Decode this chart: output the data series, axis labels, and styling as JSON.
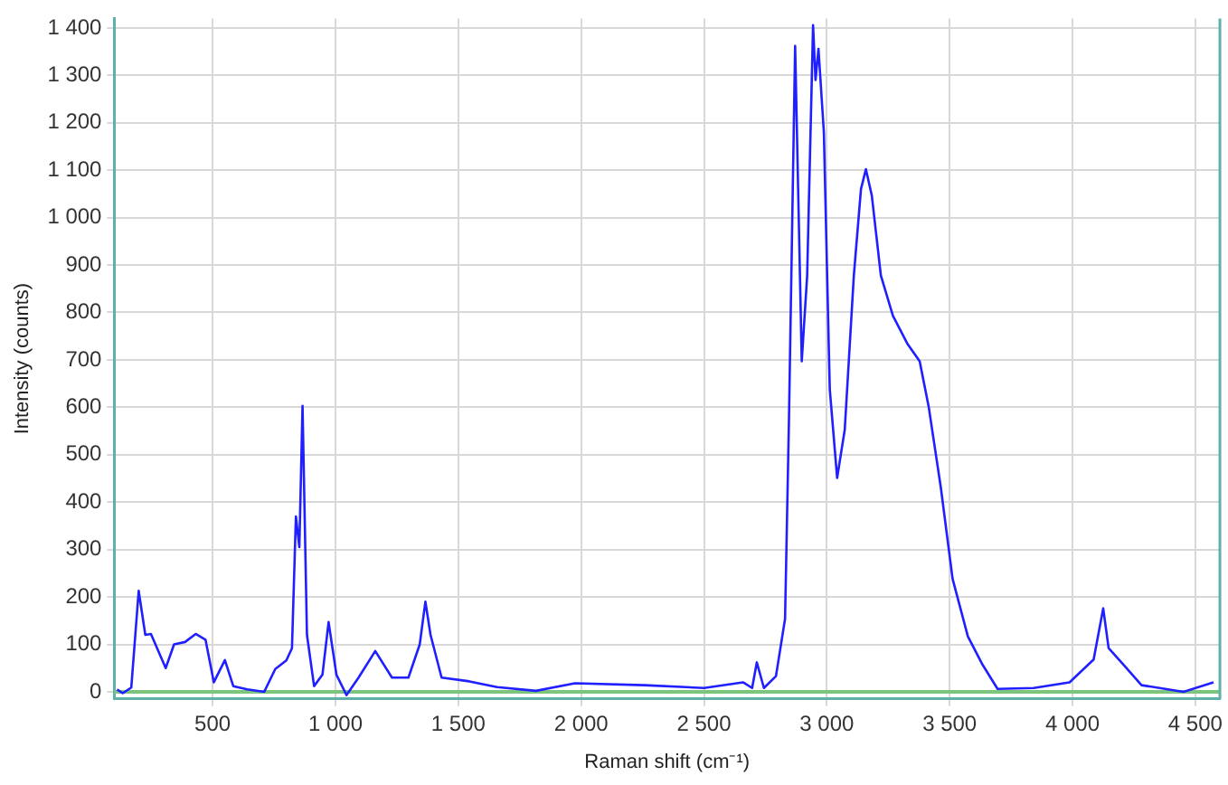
{
  "chart_data": {
    "type": "line",
    "xlabel": "Raman shift (cm⁻¹)",
    "ylabel": "Intensity (counts)",
    "xlim": [
      100,
      4600
    ],
    "ylim": [
      -15,
      1420
    ],
    "xticks": [
      500,
      {
        "value": 1000,
        "label": "1 000"
      },
      {
        "value": 1500,
        "label": "1 500"
      },
      {
        "value": 2000,
        "label": "2 000"
      },
      {
        "value": 2500,
        "label": "2 500"
      },
      {
        "value": 3000,
        "label": "3 000"
      },
      {
        "value": 3500,
        "label": "3 500"
      },
      {
        "value": 4000,
        "label": "4 000"
      },
      {
        "value": 4500,
        "label": "4 500"
      }
    ],
    "yticks": [
      0,
      100,
      200,
      300,
      400,
      500,
      600,
      700,
      800,
      900,
      {
        "value": 1000,
        "label": "1 000"
      },
      {
        "value": 1100,
        "label": "1 100"
      },
      {
        "value": 1200,
        "label": "1 200"
      },
      {
        "value": 1300,
        "label": "1 300"
      },
      {
        "value": 1400,
        "label": "1 400"
      }
    ],
    "grid": true,
    "ref_lines": [
      {
        "axis": "y",
        "value": 0,
        "color": "#7dc47d"
      }
    ],
    "series": [
      {
        "color": "#1f1fff",
        "x": [
          111,
          134,
          169,
          199,
          226,
          249,
          309,
          343,
          388,
          431,
          471,
          505,
          550,
          584,
          641,
          710,
          755,
          800,
          823,
          839,
          853,
          866,
          884,
          913,
          947,
          972,
          1004,
          1045,
          1094,
          1162,
          1230,
          1297,
          1343,
          1366,
          1387,
          1432,
          1545,
          1658,
          1816,
          1975,
          2257,
          2500,
          2659,
          2696,
          2715,
          2744,
          2793,
          2830,
          2846,
          2871,
          2898,
          2920,
          2944,
          2954,
          2966,
          2988,
          3012,
          3042,
          3073,
          3110,
          3139,
          3159,
          3183,
          3220,
          3269,
          3329,
          3378,
          3415,
          3464,
          3512,
          3574,
          3634,
          3695,
          3842,
          3988,
          4086,
          4125,
          4147,
          4208,
          4281,
          4452,
          4574
        ],
        "values": [
          5,
          -3,
          9,
          213,
          120,
          122,
          50,
          100,
          105,
          122,
          110,
          20,
          67,
          12,
          5,
          0,
          48,
          66,
          92,
          370,
          305,
          603,
          120,
          12,
          36,
          147,
          36,
          -7,
          30,
          86,
          30,
          30,
          100,
          190,
          120,
          30,
          22,
          10,
          2,
          18,
          14,
          8,
          20,
          8,
          62,
          8,
          33,
          154,
          577,
          1362,
          697,
          878,
          1406,
          1290,
          1356,
          1180,
          638,
          451,
          553,
          878,
          1060,
          1102,
          1047,
          878,
          793,
          733,
          697,
          600,
          431,
          238,
          117,
          57,
          6,
          8,
          20,
          68,
          176,
          92,
          57,
          14,
          0,
          20
        ]
      }
    ]
  }
}
